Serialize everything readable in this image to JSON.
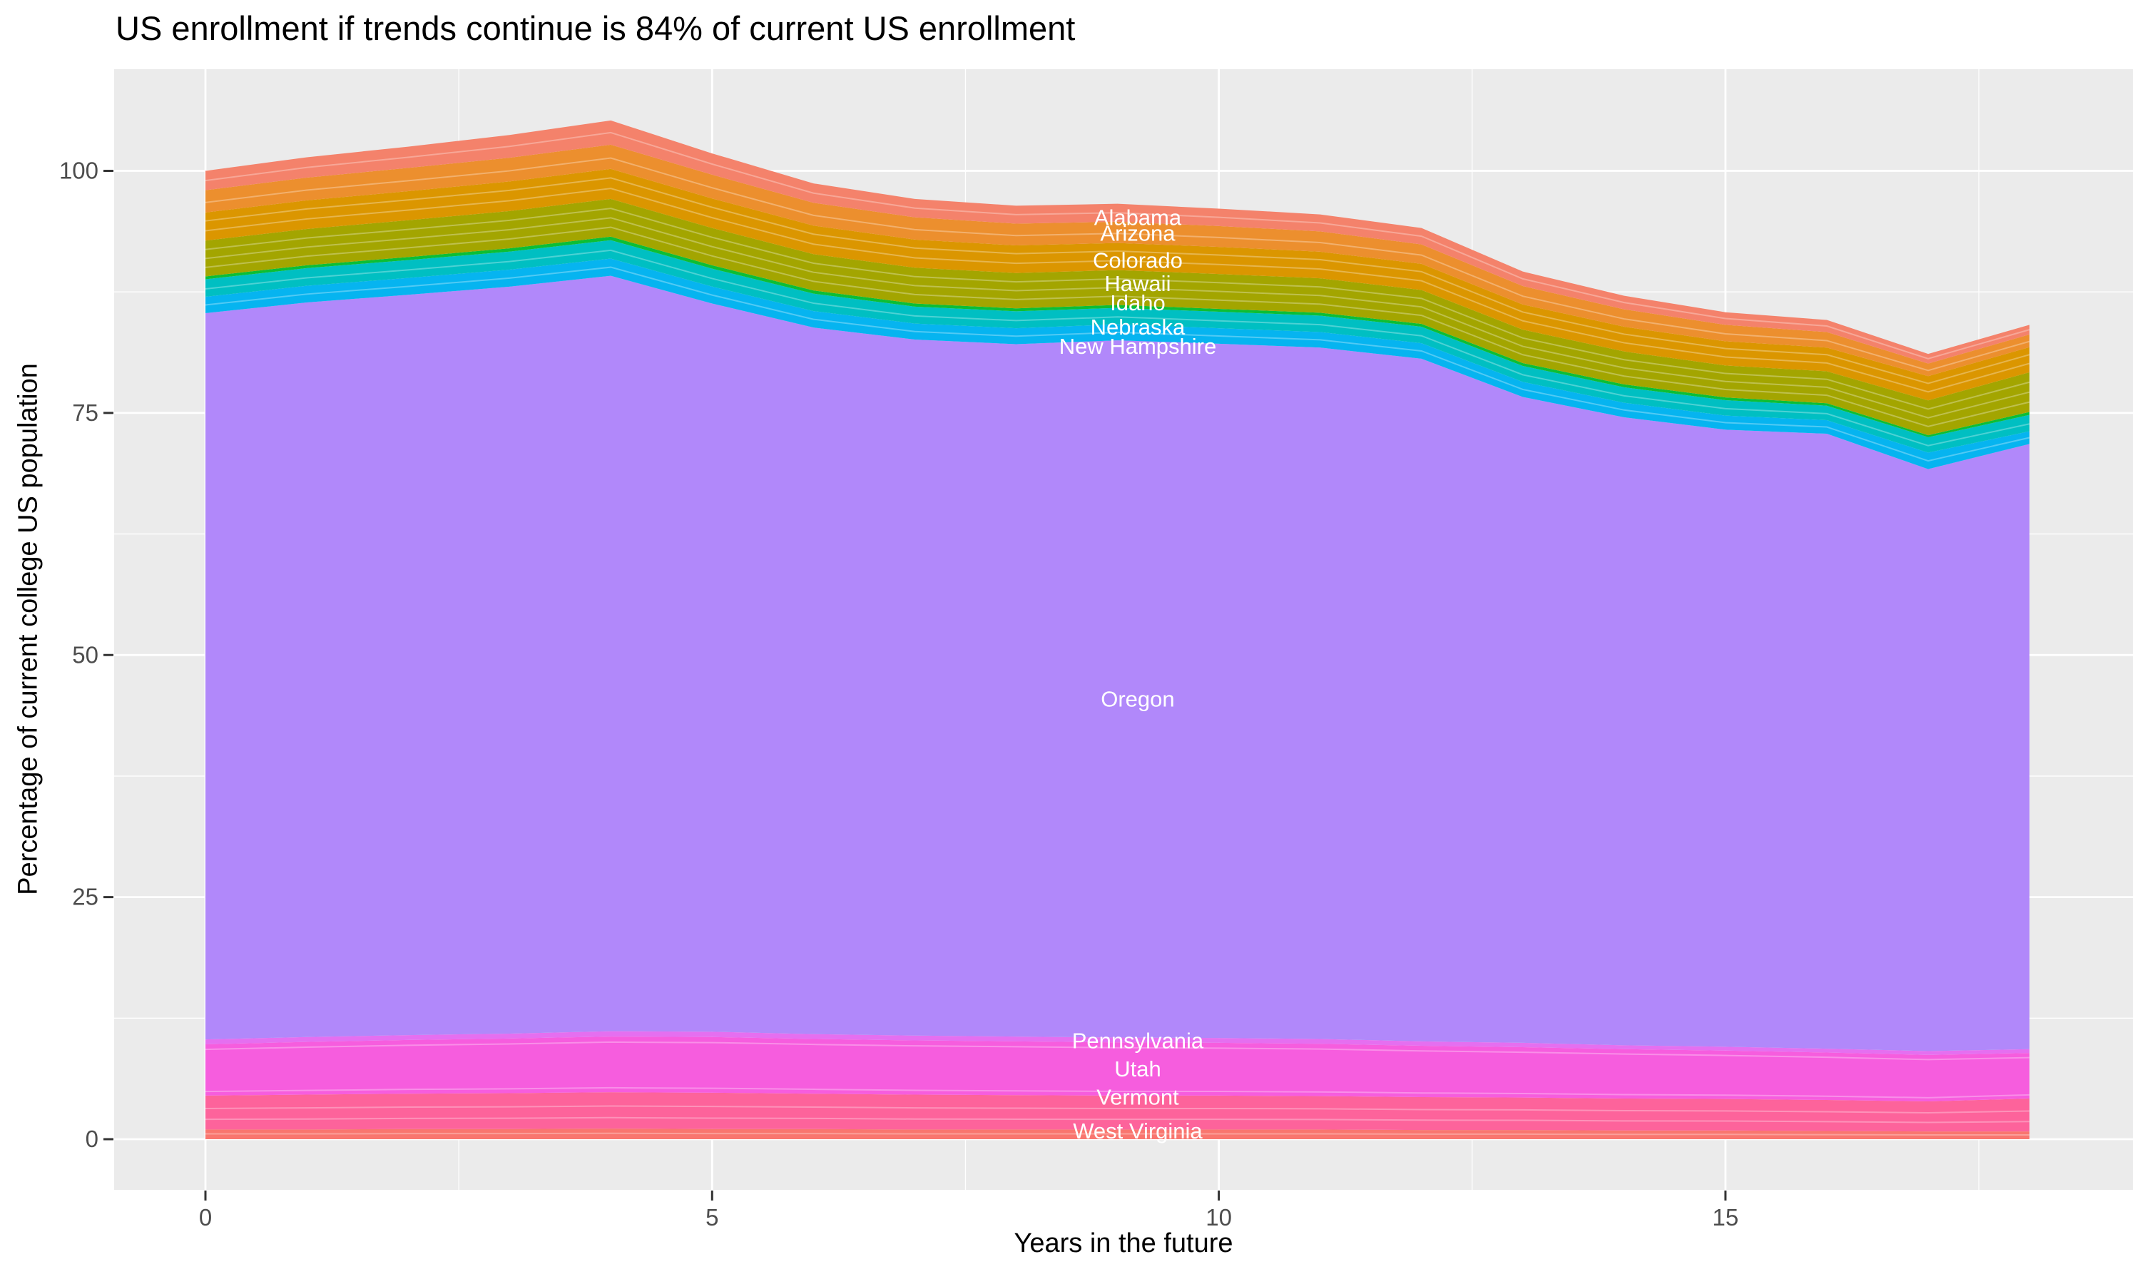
{
  "title": "US enrollment if trends continue is 84% of current US enrollment",
  "axes": {
    "x": {
      "title": "Years in the future",
      "major_ticks": [
        0,
        5,
        10,
        15
      ],
      "minor_ticks": [
        2.5,
        7.5,
        12.5,
        17.5
      ],
      "domain": [
        0,
        18
      ]
    },
    "y": {
      "title": "Percentage of current college US population",
      "major_ticks": [
        0,
        25,
        50,
        75,
        100
      ],
      "minor_ticks": [
        12.5,
        37.5,
        62.5,
        87.5
      ],
      "domain_shown": [
        -5,
        110.5
      ]
    }
  },
  "style": {
    "panel_bg": "#EBEBEB",
    "grid_color": "#FFFFFF",
    "tick_mark_color": "#333333",
    "tick_label_color": "#4D4D4D",
    "title_color": "#000000",
    "band_label_color": "#FFFFFF",
    "divider_color": "rgba(255,255,255,0.3)"
  },
  "chart_data": {
    "type": "area",
    "stacked": true,
    "title": "US enrollment if trends continue is 84% of current US enrollment",
    "xlabel": "Years in the future",
    "ylabel": "Percentage of current college US population",
    "x": [
      0,
      1,
      2,
      3,
      4,
      5,
      6,
      7,
      8,
      9,
      10,
      11,
      12,
      13,
      14,
      15,
      16,
      17,
      18
    ],
    "ylim": [
      0,
      110
    ],
    "grid": true,
    "legend": "none",
    "label_x_year": 9.2,
    "totals_by_year": [
      100.0,
      101.4,
      102.5,
      103.7,
      105.2,
      101.8,
      98.7,
      97.1,
      96.4,
      96.6,
      96.1,
      95.5,
      94.1,
      89.6,
      87.1,
      85.4,
      84.6,
      81.1,
      84.1
    ],
    "series": [
      {
        "name": "West Virginia",
        "color": "#F9766F",
        "label_y": 0.9,
        "dividers": [
          0.55
        ],
        "values": [
          1.0,
          1.0,
          1.05,
          1.05,
          1.1,
          1.05,
          1.05,
          1.0,
          1.0,
          1.0,
          1.0,
          1.0,
          0.95,
          0.95,
          0.9,
          0.9,
          0.85,
          0.8,
          0.8
        ]
      },
      {
        "name": "Vermont",
        "color": "#FD639B",
        "label_y": 4.4,
        "dividers": [
          0.3,
          0.62
        ],
        "values": [
          3.5,
          3.6,
          3.65,
          3.7,
          3.75,
          3.75,
          3.65,
          3.6,
          3.55,
          3.5,
          3.5,
          3.45,
          3.4,
          3.35,
          3.3,
          3.25,
          3.2,
          3.1,
          3.4
        ]
      },
      {
        "name": "Utah",
        "color": "#F65DDE",
        "label_y": 7.3,
        "dividers": [
          0.08,
          0.9
        ],
        "values": [
          5.3,
          5.45,
          5.55,
          5.65,
          5.75,
          5.75,
          5.65,
          5.6,
          5.55,
          5.5,
          5.45,
          5.4,
          5.3,
          5.2,
          5.1,
          5.0,
          4.9,
          4.8,
          4.7
        ]
      },
      {
        "name": "Pennsylvania",
        "color": "#E56FF0",
        "label_y": 10.2,
        "dividers": [],
        "values": [
          0.5,
          0.5,
          0.5,
          0.5,
          0.55,
          0.55,
          0.5,
          0.5,
          0.5,
          0.5,
          0.5,
          0.5,
          0.45,
          0.45,
          0.4,
          0.4,
          0.4,
          0.4,
          0.4
        ]
      },
      {
        "name": "Oregon",
        "color": "#B188FA",
        "label_y": 45.5,
        "dividers": [],
        "values": [
          75.0,
          75.86,
          76.45,
          77.14,
          78.01,
          75.2,
          72.97,
          71.88,
          71.5,
          72.0,
          71.7,
          71.4,
          70.5,
          66.7,
          64.85,
          63.72,
          63.5,
          60.1,
          62.5
        ]
      },
      {
        "name": "New Hampshire",
        "color": "#06B4F0",
        "label_y": 81.9,
        "dividers": [
          0.5
        ],
        "values": [
          1.7,
          1.72,
          1.74,
          1.76,
          1.78,
          1.75,
          1.7,
          1.65,
          1.65,
          1.65,
          1.6,
          1.6,
          1.6,
          1.55,
          1.5,
          1.45,
          1.4,
          1.7,
          1.3
        ]
      },
      {
        "name": "Nebraska",
        "color": "#00BFC2",
        "label_y": 83.9,
        "dividers": [
          0.45
        ],
        "values": [
          1.8,
          1.82,
          1.84,
          1.86,
          1.9,
          1.85,
          1.8,
          1.75,
          1.75,
          1.7,
          1.7,
          1.7,
          1.7,
          1.65,
          1.6,
          1.6,
          1.5,
          1.6,
          1.7
        ]
      },
      {
        "name": "Idaho",
        "color": "#0CBE35",
        "label_y": 86.4,
        "dividers": [],
        "values": [
          0.3,
          0.3,
          0.32,
          0.34,
          0.36,
          0.35,
          0.33,
          0.32,
          0.3,
          0.3,
          0.3,
          0.3,
          0.3,
          0.3,
          0.3,
          0.28,
          0.25,
          0.2,
          0.3
        ]
      },
      {
        "name": "Hawaii",
        "color": "#A3A500",
        "label_y": 88.4,
        "dividers": [
          0.25,
          0.5,
          0.75
        ],
        "values": [
          3.7,
          3.75,
          3.8,
          3.85,
          3.9,
          3.85,
          3.75,
          3.7,
          3.65,
          3.6,
          3.6,
          3.55,
          3.5,
          3.45,
          3.4,
          3.3,
          3.3,
          3.6,
          4.1
        ]
      },
      {
        "name": "Colorado",
        "color": "#DB9600",
        "label_y": 90.8,
        "dividers": [
          0.35,
          0.7
        ],
        "values": [
          2.9,
          2.95,
          3.0,
          3.05,
          3.1,
          3.05,
          2.95,
          2.9,
          2.85,
          2.8,
          2.8,
          2.75,
          2.7,
          2.6,
          2.55,
          2.5,
          2.45,
          2.5,
          2.6
        ]
      },
      {
        "name": "Arizona",
        "color": "#EC8F2E",
        "label_y": 93.6,
        "dividers": [
          0.45
        ],
        "values": [
          2.3,
          2.35,
          2.4,
          2.45,
          2.5,
          2.45,
          2.35,
          2.3,
          2.25,
          2.2,
          2.15,
          2.1,
          2.0,
          1.9,
          1.8,
          1.7,
          1.6,
          1.3,
          1.3
        ]
      },
      {
        "name": "Alabama",
        "color": "#F4826B",
        "label_y": 95.2,
        "dividers": [
          0.5
        ],
        "values": [
          2.0,
          2.1,
          2.2,
          2.35,
          2.5,
          2.2,
          2.0,
          1.9,
          1.85,
          1.85,
          1.8,
          1.75,
          1.7,
          1.5,
          1.4,
          1.3,
          1.25,
          1.0,
          1.0
        ]
      }
    ]
  }
}
